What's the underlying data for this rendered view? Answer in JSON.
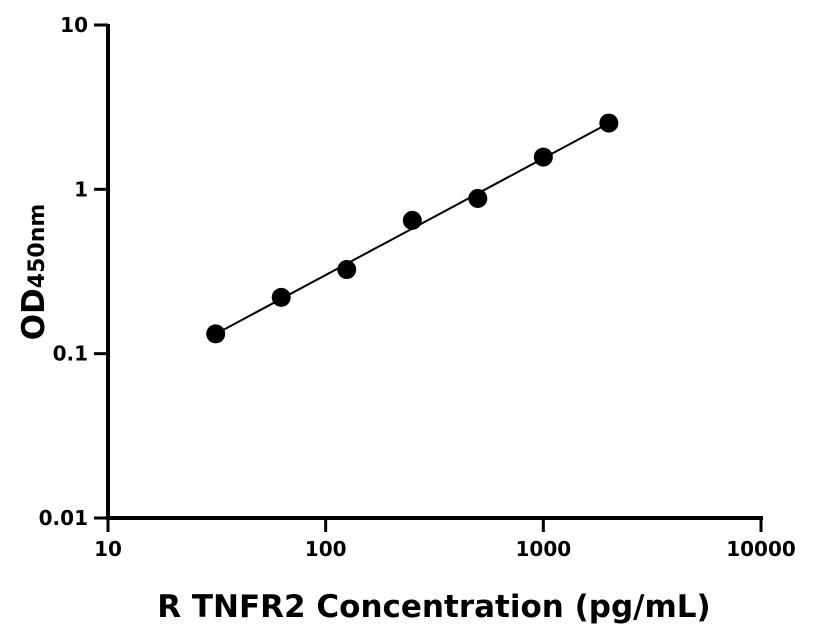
{
  "chart_data": {
    "type": "scatter",
    "title": "",
    "xlabel": "R TNFR2 Concentration (pg/mL)",
    "ylabel_main": "OD",
    "ylabel_sub": "450nm",
    "x_scale": "log",
    "y_scale": "log",
    "xlim": [
      10,
      10000
    ],
    "ylim": [
      0.01,
      10
    ],
    "x_ticks": [
      10,
      100,
      1000,
      10000
    ],
    "x_tick_labels": [
      "10",
      "100",
      "1000",
      "10000"
    ],
    "y_ticks": [
      0.01,
      0.1,
      1,
      10
    ],
    "y_tick_labels": [
      "0.01",
      "0.1",
      "1",
      "10"
    ],
    "grid": false,
    "fit_line": true,
    "color": "#000000",
    "points": {
      "x": [
        31.25,
        62.5,
        125,
        250,
        500,
        1000,
        2000
      ],
      "y": [
        0.132,
        0.22,
        0.325,
        0.647,
        0.88,
        1.57,
        2.53
      ]
    }
  }
}
